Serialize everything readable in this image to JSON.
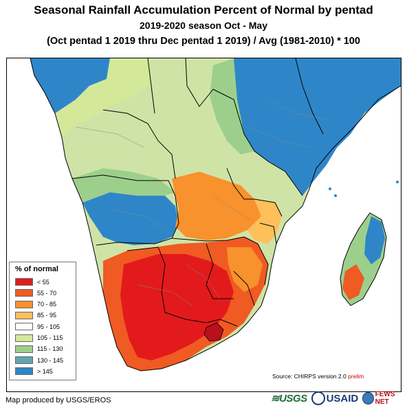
{
  "title": {
    "line1": "Seasonal Rainfall Accumulation Percent of Normal by pentad",
    "line2": "2019-2020 season Oct - May",
    "line3": "(Oct pentad 1 2019 thru Dec pentad 1 2019) / Avg (1981-2010) * 100"
  },
  "legend": {
    "title": "% of normal",
    "items": [
      {
        "label": "< 55",
        "color": "#e31a1c"
      },
      {
        "label": "55 - 70",
        "color": "#f05a23"
      },
      {
        "label": "70 - 85",
        "color": "#f7922d"
      },
      {
        "label": "85 - 95",
        "color": "#fdc05a"
      },
      {
        "label": "95 - 105",
        "color": "#ffffff"
      },
      {
        "label": "105 - 115",
        "color": "#d4e89a"
      },
      {
        "label": "115 - 130",
        "color": "#9dcf8c"
      },
      {
        "label": "130 - 145",
        "color": "#5fa6b3"
      },
      {
        "label": "> 145",
        "color": "#2e86c8"
      }
    ]
  },
  "source": {
    "text": "Source: CHIRPS version 2.0",
    "prelim": "prelim"
  },
  "footer": {
    "credit": "Map produced by USGS/EROS"
  },
  "logos": {
    "usgs": "≋USGS",
    "usaid": "USAID",
    "fews": "FEWS NET"
  }
}
